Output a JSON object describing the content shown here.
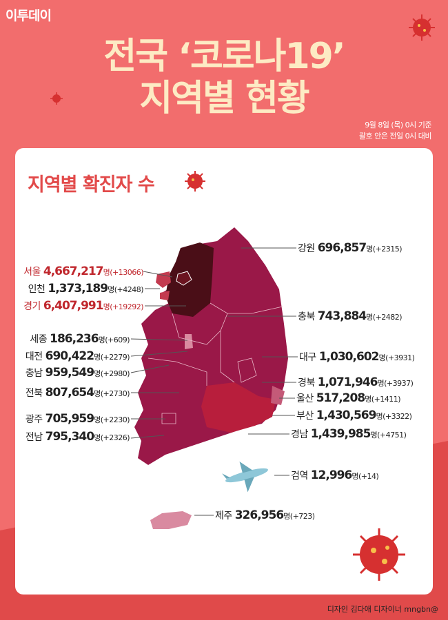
{
  "logo": "이투데이",
  "title_line1": "전국 ‘코로나19’",
  "title_line2": "지역별 현황",
  "note_line1": "9월 8일 (목) 0시 기준",
  "note_line2": "괄호 안은 전일 0시 대비",
  "subtitle": "지역별 확진자 수",
  "unit": "명",
  "regions": [
    {
      "name": "서울",
      "count": "4,667,217",
      "change": "(+13066)",
      "highlight": true
    },
    {
      "name": "인천",
      "count": "1,373,189",
      "change": "(+4248)",
      "highlight": false
    },
    {
      "name": "경기",
      "count": "6,407,991",
      "change": "(+19292)",
      "highlight": true
    },
    {
      "name": "세종",
      "count": "186,236",
      "change": "(+609)",
      "highlight": false
    },
    {
      "name": "대전",
      "count": "690,422",
      "change": "(+2279)",
      "highlight": false
    },
    {
      "name": "충남",
      "count": "959,549",
      "change": "(+2980)",
      "highlight": false
    },
    {
      "name": "전북",
      "count": "807,654",
      "change": "(+2730)",
      "highlight": false
    },
    {
      "name": "광주",
      "count": "705,959",
      "change": "(+2230)",
      "highlight": false
    },
    {
      "name": "전남",
      "count": "795,340",
      "change": "(+2326)",
      "highlight": false
    },
    {
      "name": "강원",
      "count": "696,857",
      "change": "(+2315)",
      "highlight": false
    },
    {
      "name": "충북",
      "count": "743,884",
      "change": "(+2482)",
      "highlight": false
    },
    {
      "name": "대구",
      "count": "1,030,602",
      "change": "(+3931)",
      "highlight": false
    },
    {
      "name": "경북",
      "count": "1,071,946",
      "change": "(+3937)",
      "highlight": false
    },
    {
      "name": "울산",
      "count": "517,208",
      "change": "(+1411)",
      "highlight": false
    },
    {
      "name": "부산",
      "count": "1,430,569",
      "change": "(+3322)",
      "highlight": false
    },
    {
      "name": "경남",
      "count": "1,439,985",
      "change": "(+4751)",
      "highlight": false
    },
    {
      "name": "검역",
      "count": "12,996",
      "change": "(+14)",
      "highlight": false
    },
    {
      "name": "제주",
      "count": "326,956",
      "change": "(+723)",
      "highlight": false
    }
  ],
  "credit": "디자인 김다애 디자이너 mngbn@",
  "colors": {
    "background": "#f26d6d",
    "title": "#fdebc4",
    "accent": "#e24a4a",
    "capital": "#4a0e17",
    "region": "#9a1848",
    "gyeongnam": "#b81e3c",
    "jeju": "#d98aa0"
  }
}
